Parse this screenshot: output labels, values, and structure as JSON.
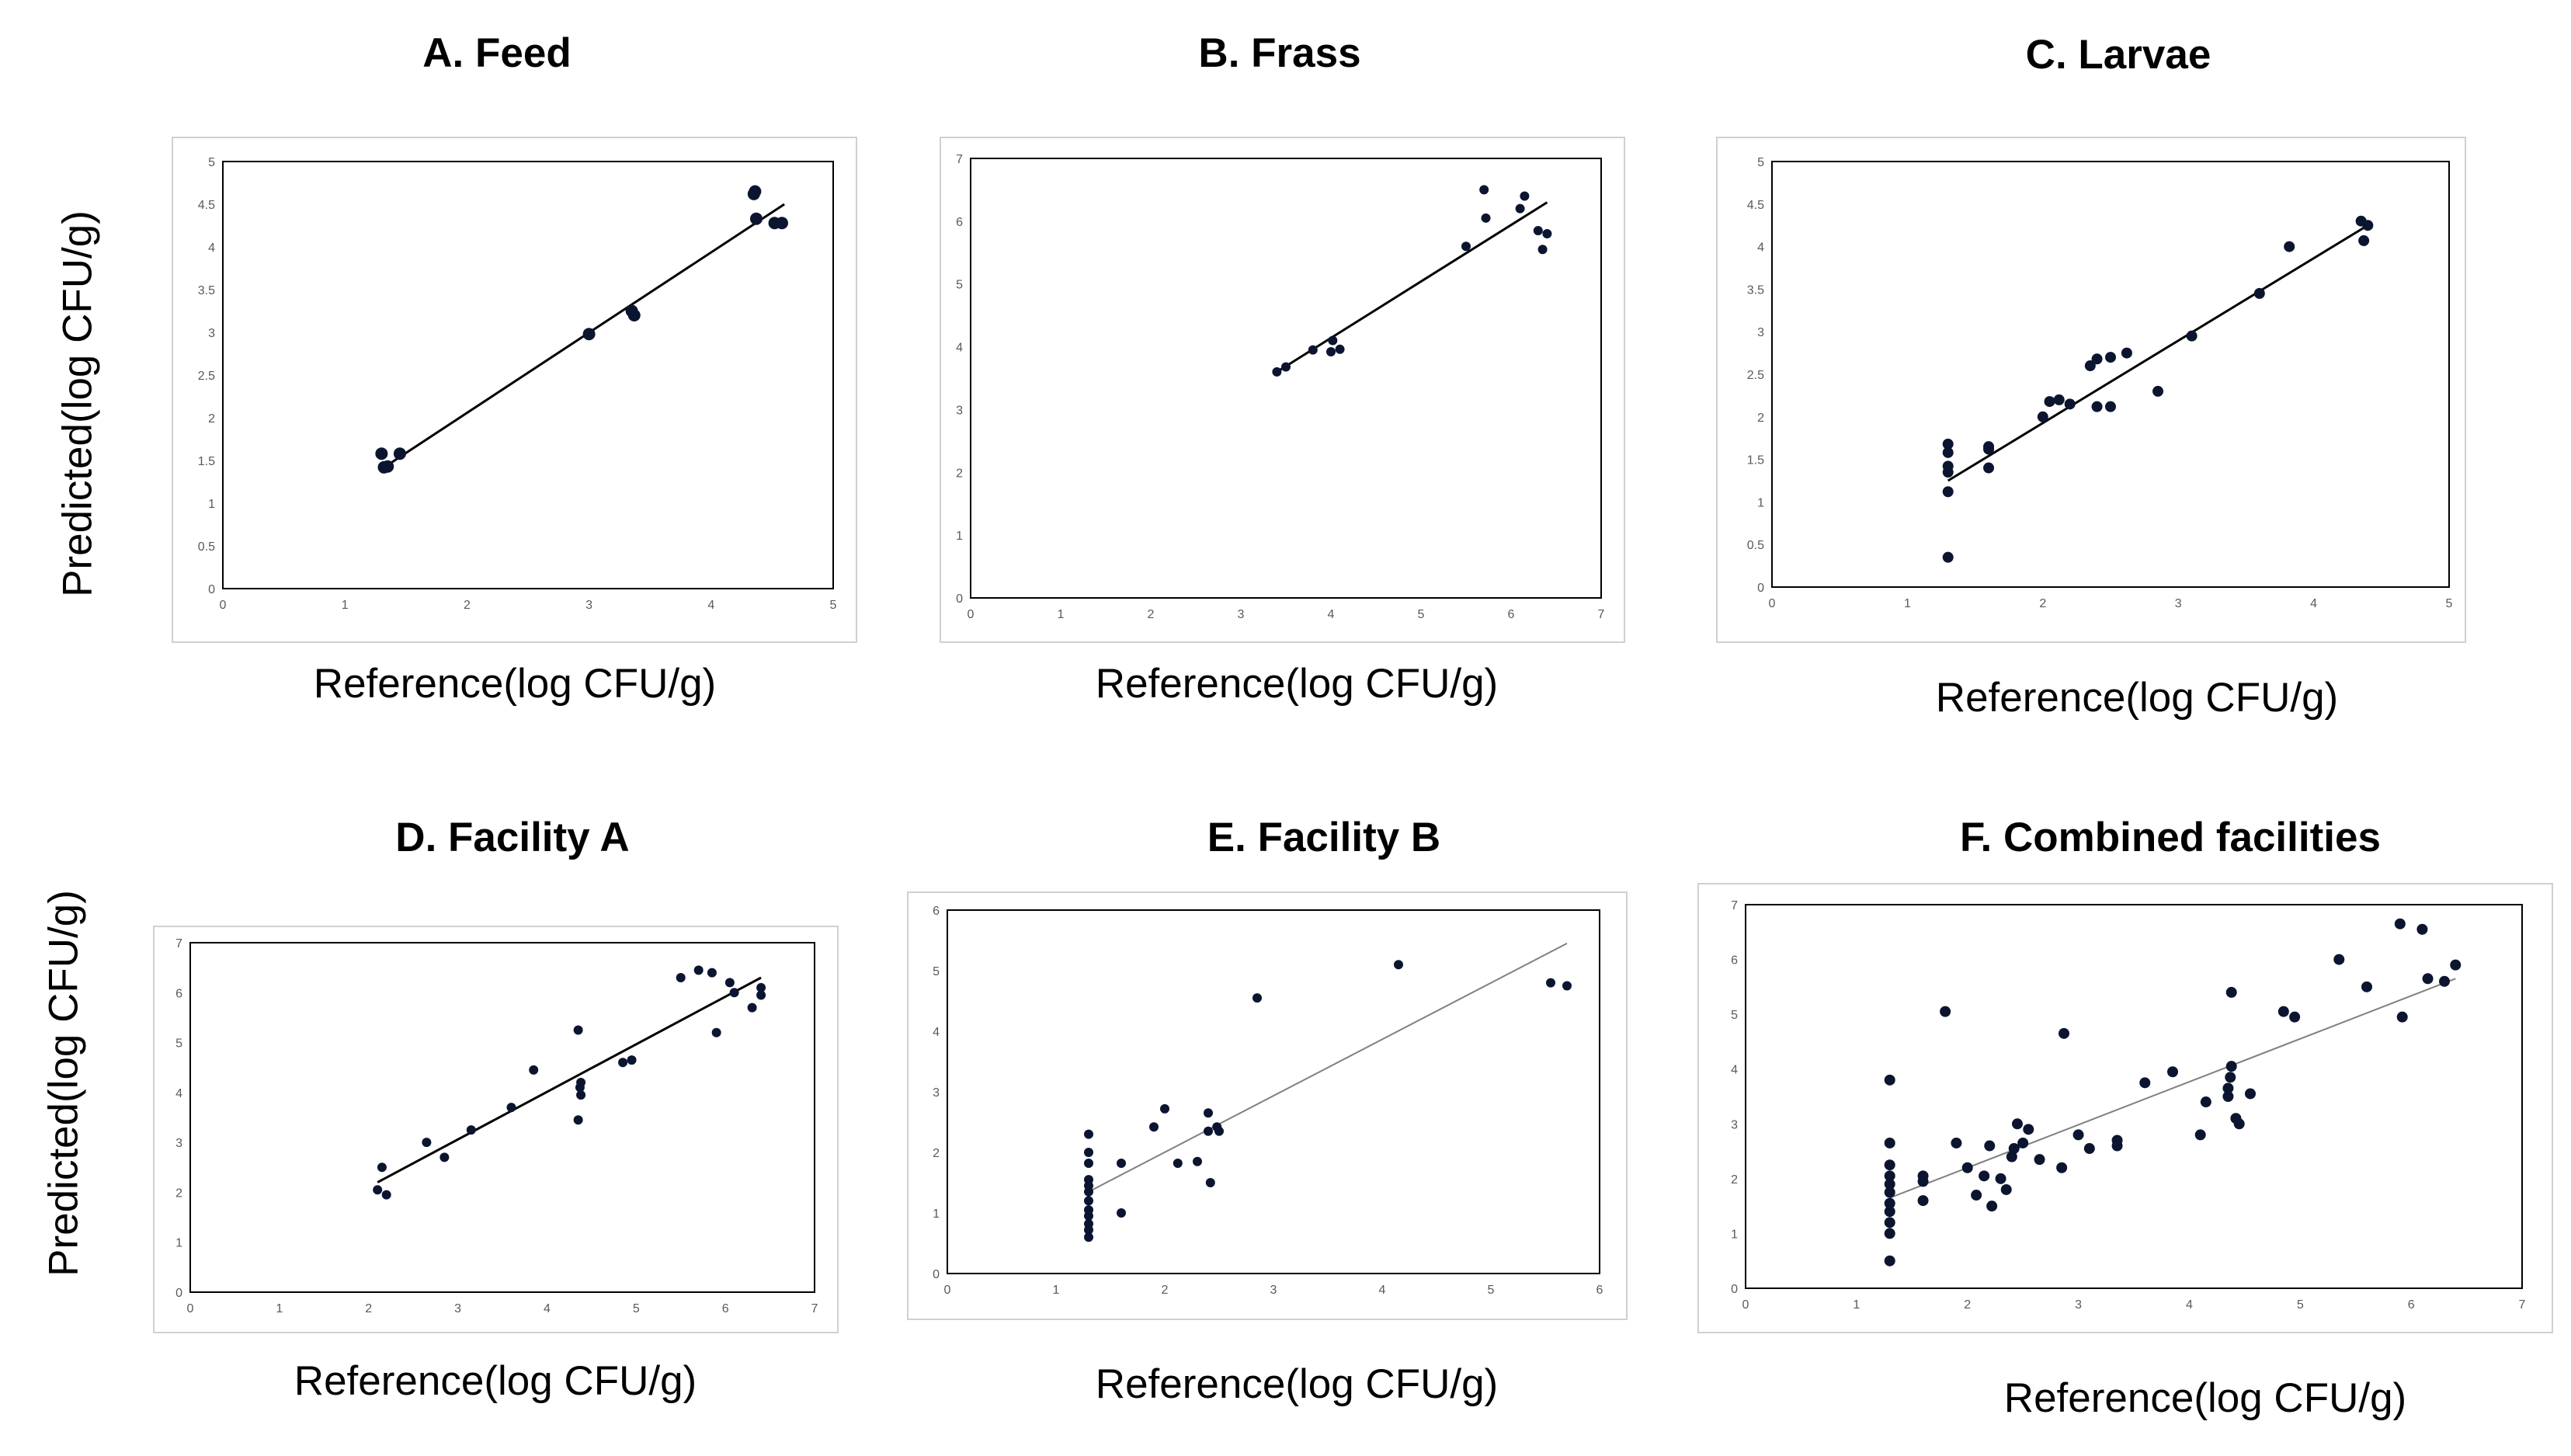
{
  "figure": {
    "y_axis_label": "Predicted(log CFU/g)",
    "x_axis_label": "Reference(log CFU/g)"
  },
  "chart_data": [
    {
      "id": "feed",
      "type": "scatter",
      "title": "A. Feed",
      "xlabel": "Reference(log CFU/g)",
      "ylabel": "Predicted(log CFU/g)",
      "xlim": [
        0,
        5
      ],
      "ylim": [
        0,
        5
      ],
      "xticks": [
        0,
        1,
        2,
        3,
        4,
        5
      ],
      "yticks": [
        0,
        0.5,
        1,
        1.5,
        2,
        2.5,
        3,
        3.5,
        4,
        4.5,
        5
      ],
      "ytick_labels": [
        "0",
        "0.5",
        "1",
        "1.5",
        "2",
        "2.5",
        "3",
        "3.5",
        "4",
        "4.5",
        "5"
      ],
      "points": [
        [
          1.3,
          1.58
        ],
        [
          1.32,
          1.42
        ],
        [
          1.35,
          1.43
        ],
        [
          1.45,
          1.58
        ],
        [
          3.0,
          2.98
        ],
        [
          3.35,
          3.25
        ],
        [
          3.37,
          3.2
        ],
        [
          4.35,
          4.62
        ],
        [
          4.36,
          4.65
        ],
        [
          4.37,
          4.33
        ],
        [
          4.52,
          4.28
        ],
        [
          4.58,
          4.28
        ]
      ],
      "trendline": [
        [
          1.3,
          1.4
        ],
        [
          4.6,
          4.5
        ]
      ],
      "trend_color": "#000000",
      "marker_size": 8
    },
    {
      "id": "frass",
      "type": "scatter",
      "title": "B. Frass",
      "xlabel": "Reference(log CFU/g)",
      "ylabel": "Predicted(log CFU/g)",
      "xlim": [
        0,
        7
      ],
      "ylim": [
        0,
        7
      ],
      "xticks": [
        0,
        1,
        2,
        3,
        4,
        5,
        6,
        7
      ],
      "yticks": [
        0,
        1,
        2,
        3,
        4,
        5,
        6,
        7
      ],
      "ytick_labels": [
        "0",
        "1",
        "2",
        "3",
        "4",
        "5",
        "6",
        "7"
      ],
      "points": [
        [
          3.4,
          3.6
        ],
        [
          3.5,
          3.68
        ],
        [
          3.8,
          3.95
        ],
        [
          4.0,
          3.92
        ],
        [
          4.02,
          4.1
        ],
        [
          4.1,
          3.96
        ],
        [
          5.5,
          5.6
        ],
        [
          5.7,
          6.5
        ],
        [
          5.72,
          6.05
        ],
        [
          6.1,
          6.2
        ],
        [
          6.15,
          6.4
        ],
        [
          6.3,
          5.85
        ],
        [
          6.35,
          5.55
        ],
        [
          6.4,
          5.8
        ]
      ],
      "trendline": [
        [
          3.4,
          3.6
        ],
        [
          6.4,
          6.3
        ]
      ],
      "trend_color": "#000000",
      "marker_size": 6
    },
    {
      "id": "larvae",
      "type": "scatter",
      "title": "C. Larvae",
      "xlabel": "Reference(log CFU/g)",
      "ylabel": "Predicted(log CFU/g)",
      "xlim": [
        0,
        5
      ],
      "ylim": [
        0,
        5
      ],
      "xticks": [
        0,
        1,
        2,
        3,
        4,
        5
      ],
      "yticks": [
        0,
        0.5,
        1,
        1.5,
        2,
        2.5,
        3,
        3.5,
        4,
        4.5,
        5
      ],
      "ytick_labels": [
        "0",
        "0.5",
        "1",
        "1.5",
        "2",
        "2.5",
        "3",
        "3.5",
        "4",
        "4.5",
        "5"
      ],
      "points": [
        [
          1.3,
          0.35
        ],
        [
          1.3,
          1.12
        ],
        [
          1.3,
          1.35
        ],
        [
          1.3,
          1.42
        ],
        [
          1.3,
          1.58
        ],
        [
          1.3,
          1.68
        ],
        [
          1.6,
          1.4
        ],
        [
          1.6,
          1.62
        ],
        [
          1.6,
          1.65
        ],
        [
          2.0,
          2.0
        ],
        [
          2.05,
          2.18
        ],
        [
          2.12,
          2.2
        ],
        [
          2.2,
          2.15
        ],
        [
          2.35,
          2.6
        ],
        [
          2.4,
          2.68
        ],
        [
          2.4,
          2.12
        ],
        [
          2.5,
          2.12
        ],
        [
          2.5,
          2.7
        ],
        [
          2.62,
          2.75
        ],
        [
          2.85,
          2.3
        ],
        [
          3.1,
          2.95
        ],
        [
          3.6,
          3.45
        ],
        [
          3.82,
          4.0
        ],
        [
          4.35,
          4.3
        ],
        [
          4.37,
          4.07
        ],
        [
          4.4,
          4.25
        ]
      ],
      "trendline": [
        [
          1.3,
          1.25
        ],
        [
          4.4,
          4.25
        ]
      ],
      "trend_color": "#000000",
      "marker_size": 7
    },
    {
      "id": "facility-a",
      "type": "scatter",
      "title": "D. Facility A",
      "xlabel": "Reference(log CFU/g)",
      "ylabel": "Predicted(log CFU/g)",
      "xlim": [
        0,
        7
      ],
      "ylim": [
        0,
        7
      ],
      "xticks": [
        0,
        1,
        2,
        3,
        4,
        5,
        6,
        7
      ],
      "yticks": [
        0,
        1,
        2,
        3,
        4,
        5,
        6,
        7
      ],
      "ytick_labels": [
        "0",
        "1",
        "2",
        "3",
        "4",
        "5",
        "6",
        "7"
      ],
      "points": [
        [
          2.1,
          2.05
        ],
        [
          2.15,
          2.5
        ],
        [
          2.2,
          1.95
        ],
        [
          2.65,
          3.0
        ],
        [
          2.85,
          2.7
        ],
        [
          3.15,
          3.25
        ],
        [
          3.6,
          3.7
        ],
        [
          3.85,
          4.45
        ],
        [
          4.35,
          5.25
        ],
        [
          4.35,
          3.45
        ],
        [
          4.37,
          4.1
        ],
        [
          4.38,
          3.95
        ],
        [
          4.38,
          4.2
        ],
        [
          4.85,
          4.6
        ],
        [
          4.95,
          4.65
        ],
        [
          5.5,
          6.3
        ],
        [
          5.7,
          6.45
        ],
        [
          5.85,
          6.4
        ],
        [
          5.9,
          5.2
        ],
        [
          6.05,
          6.2
        ],
        [
          6.1,
          6.0
        ],
        [
          6.3,
          5.7
        ],
        [
          6.4,
          5.95
        ],
        [
          6.4,
          6.1
        ]
      ],
      "trendline": [
        [
          2.1,
          2.2
        ],
        [
          6.4,
          6.3
        ]
      ],
      "trend_color": "#000000",
      "marker_size": 6
    },
    {
      "id": "facility-b",
      "type": "scatter",
      "title": "E. Facility B",
      "xlabel": "Reference(log CFU/g)",
      "ylabel": "Predicted(log CFU/g)",
      "xlim": [
        0,
        6
      ],
      "ylim": [
        0,
        6
      ],
      "xticks": [
        0,
        1,
        2,
        3,
        4,
        5,
        6
      ],
      "yticks": [
        0,
        1,
        2,
        3,
        4,
        5,
        6
      ],
      "ytick_labels": [
        "0",
        "1",
        "2",
        "3",
        "4",
        "5",
        "6"
      ],
      "points": [
        [
          1.3,
          0.6
        ],
        [
          1.3,
          0.72
        ],
        [
          1.3,
          0.82
        ],
        [
          1.3,
          0.95
        ],
        [
          1.3,
          1.05
        ],
        [
          1.3,
          1.2
        ],
        [
          1.3,
          1.35
        ],
        [
          1.3,
          1.45
        ],
        [
          1.3,
          1.55
        ],
        [
          1.3,
          1.82
        ],
        [
          1.3,
          2.0
        ],
        [
          1.3,
          2.3
        ],
        [
          1.6,
          1.0
        ],
        [
          1.6,
          1.82
        ],
        [
          1.9,
          2.42
        ],
        [
          2.0,
          2.72
        ],
        [
          2.12,
          1.82
        ],
        [
          2.3,
          1.85
        ],
        [
          2.4,
          2.35
        ],
        [
          2.4,
          2.65
        ],
        [
          2.42,
          1.5
        ],
        [
          2.48,
          2.42
        ],
        [
          2.5,
          2.35
        ],
        [
          2.85,
          4.55
        ],
        [
          4.15,
          5.1
        ],
        [
          5.55,
          4.8
        ],
        [
          5.7,
          4.75
        ]
      ],
      "trendline": [
        [
          1.3,
          1.35
        ],
        [
          5.7,
          5.45
        ]
      ],
      "trend_color": "#808080",
      "marker_size": 6
    },
    {
      "id": "combined",
      "type": "scatter",
      "title": "F. Combined facilities",
      "xlabel": "Reference(log CFU/g)",
      "ylabel": "Predicted(log CFU/g)",
      "xlim": [
        0,
        7
      ],
      "ylim": [
        0,
        7
      ],
      "xticks": [
        0,
        1,
        2,
        3,
        4,
        5,
        6,
        7
      ],
      "yticks": [
        0,
        1,
        2,
        3,
        4,
        5,
        6,
        7
      ],
      "ytick_labels": [
        "0",
        "1",
        "2",
        "3",
        "4",
        "5",
        "6",
        "7"
      ],
      "points": [
        [
          1.3,
          0.5
        ],
        [
          1.3,
          1.0
        ],
        [
          1.3,
          1.2
        ],
        [
          1.3,
          1.4
        ],
        [
          1.3,
          1.55
        ],
        [
          1.3,
          1.75
        ],
        [
          1.3,
          1.9
        ],
        [
          1.3,
          2.05
        ],
        [
          1.3,
          2.25
        ],
        [
          1.3,
          2.65
        ],
        [
          1.3,
          3.8
        ],
        [
          1.6,
          1.6
        ],
        [
          1.6,
          1.95
        ],
        [
          1.6,
          2.05
        ],
        [
          1.8,
          5.05
        ],
        [
          1.9,
          2.65
        ],
        [
          2.0,
          2.2
        ],
        [
          2.08,
          1.7
        ],
        [
          2.15,
          2.05
        ],
        [
          2.2,
          2.6
        ],
        [
          2.22,
          1.5
        ],
        [
          2.3,
          2.0
        ],
        [
          2.35,
          1.8
        ],
        [
          2.4,
          2.4
        ],
        [
          2.42,
          2.55
        ],
        [
          2.45,
          3.0
        ],
        [
          2.5,
          2.65
        ],
        [
          2.55,
          2.9
        ],
        [
          2.65,
          2.35
        ],
        [
          2.85,
          2.2
        ],
        [
          2.87,
          4.65
        ],
        [
          3.0,
          2.8
        ],
        [
          3.1,
          2.55
        ],
        [
          3.35,
          2.6
        ],
        [
          3.35,
          2.7
        ],
        [
          3.6,
          3.75
        ],
        [
          3.85,
          3.95
        ],
        [
          4.1,
          2.8
        ],
        [
          4.15,
          3.4
        ],
        [
          4.35,
          3.5
        ],
        [
          4.35,
          3.65
        ],
        [
          4.37,
          3.85
        ],
        [
          4.38,
          4.05
        ],
        [
          4.38,
          5.4
        ],
        [
          4.42,
          3.1
        ],
        [
          4.45,
          3.0
        ],
        [
          4.55,
          3.55
        ],
        [
          4.85,
          5.05
        ],
        [
          4.95,
          4.95
        ],
        [
          5.35,
          6.0
        ],
        [
          5.6,
          5.5
        ],
        [
          5.9,
          6.65
        ],
        [
          5.92,
          4.95
        ],
        [
          6.1,
          6.55
        ],
        [
          6.15,
          5.65
        ],
        [
          6.3,
          5.6
        ],
        [
          6.4,
          5.9
        ]
      ],
      "trendline": [
        [
          1.3,
          1.65
        ],
        [
          6.4,
          5.65
        ]
      ],
      "trend_color": "#808080",
      "marker_size": 7
    }
  ]
}
